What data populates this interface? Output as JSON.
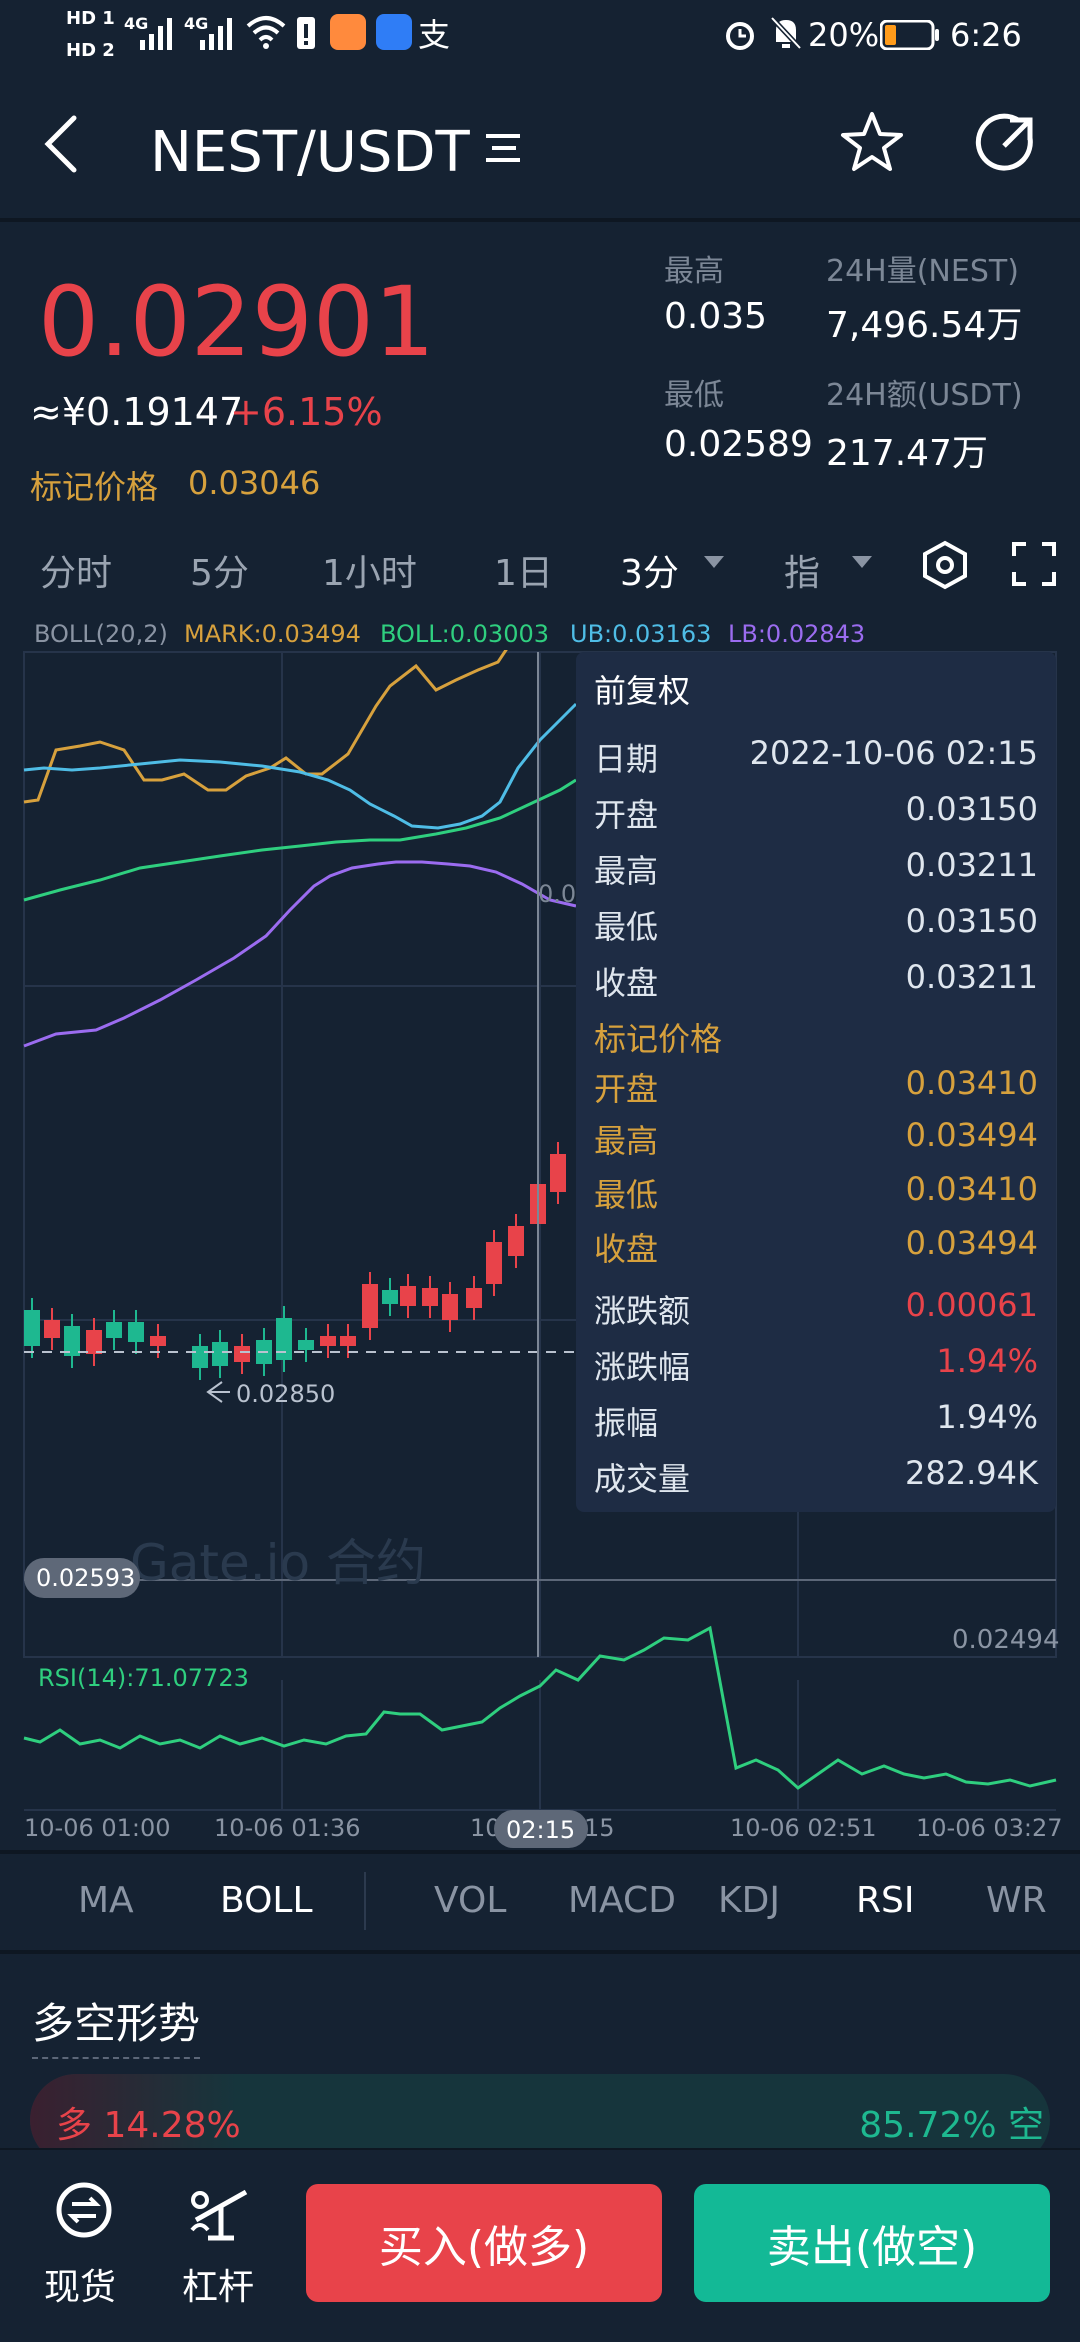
{
  "status_bar": {
    "network_1": "HD 1",
    "network_2": "HD 2",
    "signal_1": "4G",
    "signal_2": "4G",
    "battery": "20%",
    "time": "6:26"
  },
  "header": {
    "pair": "NEST/USDT"
  },
  "ticker": {
    "price": "0.02901",
    "cny": "≈¥0.19147",
    "change": "+6.15%",
    "mark_label": "标记价格",
    "mark_value": "0.03046",
    "high_label": "最高",
    "high_value": "0.035",
    "low_label": "最低",
    "low_value": "0.02589",
    "vol_label": "24H量(NEST)",
    "vol_value": "7,496.54万",
    "amt_label": "24H额(USDT)",
    "amt_value": "217.47万"
  },
  "timeframes": [
    "分时",
    "5分",
    "1小时",
    "1日",
    "3分",
    "指"
  ],
  "legend": {
    "boll": "BOLL(20,2)",
    "mark": "MARK:0.03494",
    "mid": "BOLL:0.03003",
    "ub": "UB:0.03163",
    "lb": "LB:0.02843"
  },
  "chart": {
    "watermark": "Gate.io 合约",
    "min_label": "0.02593",
    "low_price_label": "0.02850",
    "axis_label": "0.02494",
    "partial_label": "0.0",
    "rsi_label": "RSI(14):71.07723",
    "x_ticks": [
      "10-06 01:00",
      "10-06 01:36",
      "10",
      "15",
      "10-06 02:51",
      "10-06 03:27"
    ],
    "crosshair_time": "02:15",
    "colors": {
      "up": "#e8434a",
      "down": "#1eb890",
      "ub": "#d7a13d",
      "mid": "#4fbde6",
      "lb": "#9b6cf0",
      "lower": "#2fcf7f"
    }
  },
  "tooltip": {
    "title": "前复权",
    "rows": [
      {
        "k": "日期",
        "v": "2022-10-06 02:15"
      },
      {
        "k": "开盘",
        "v": "0.03150"
      },
      {
        "k": "最高",
        "v": "0.03211"
      },
      {
        "k": "最低",
        "v": "0.03150"
      },
      {
        "k": "收盘",
        "v": "0.03211"
      }
    ],
    "mark_title": "标记价格",
    "mark_rows": [
      {
        "k": "开盘",
        "v": "0.03410"
      },
      {
        "k": "最高",
        "v": "0.03494"
      },
      {
        "k": "最低",
        "v": "0.03410"
      },
      {
        "k": "收盘",
        "v": "0.03494"
      }
    ],
    "stats": [
      {
        "k": "涨跌额",
        "v": "0.00061"
      },
      {
        "k": "涨跌幅",
        "v": "1.94%"
      },
      {
        "k": "振幅",
        "v": "1.94%"
      },
      {
        "k": "成交量",
        "v": "282.94K"
      }
    ]
  },
  "indicators": [
    "MA",
    "BOLL",
    "VOL",
    "MACD",
    "KDJ",
    "RSI",
    "WR"
  ],
  "long_short": {
    "title": "多空形势",
    "long": "多 14.28%",
    "short": "85.72% 空",
    "long_ratio": 0.1428
  },
  "bottom": {
    "spot": "现货",
    "margin": "杠杆",
    "buy": "买入(做多)",
    "sell": "卖出(做空)"
  }
}
